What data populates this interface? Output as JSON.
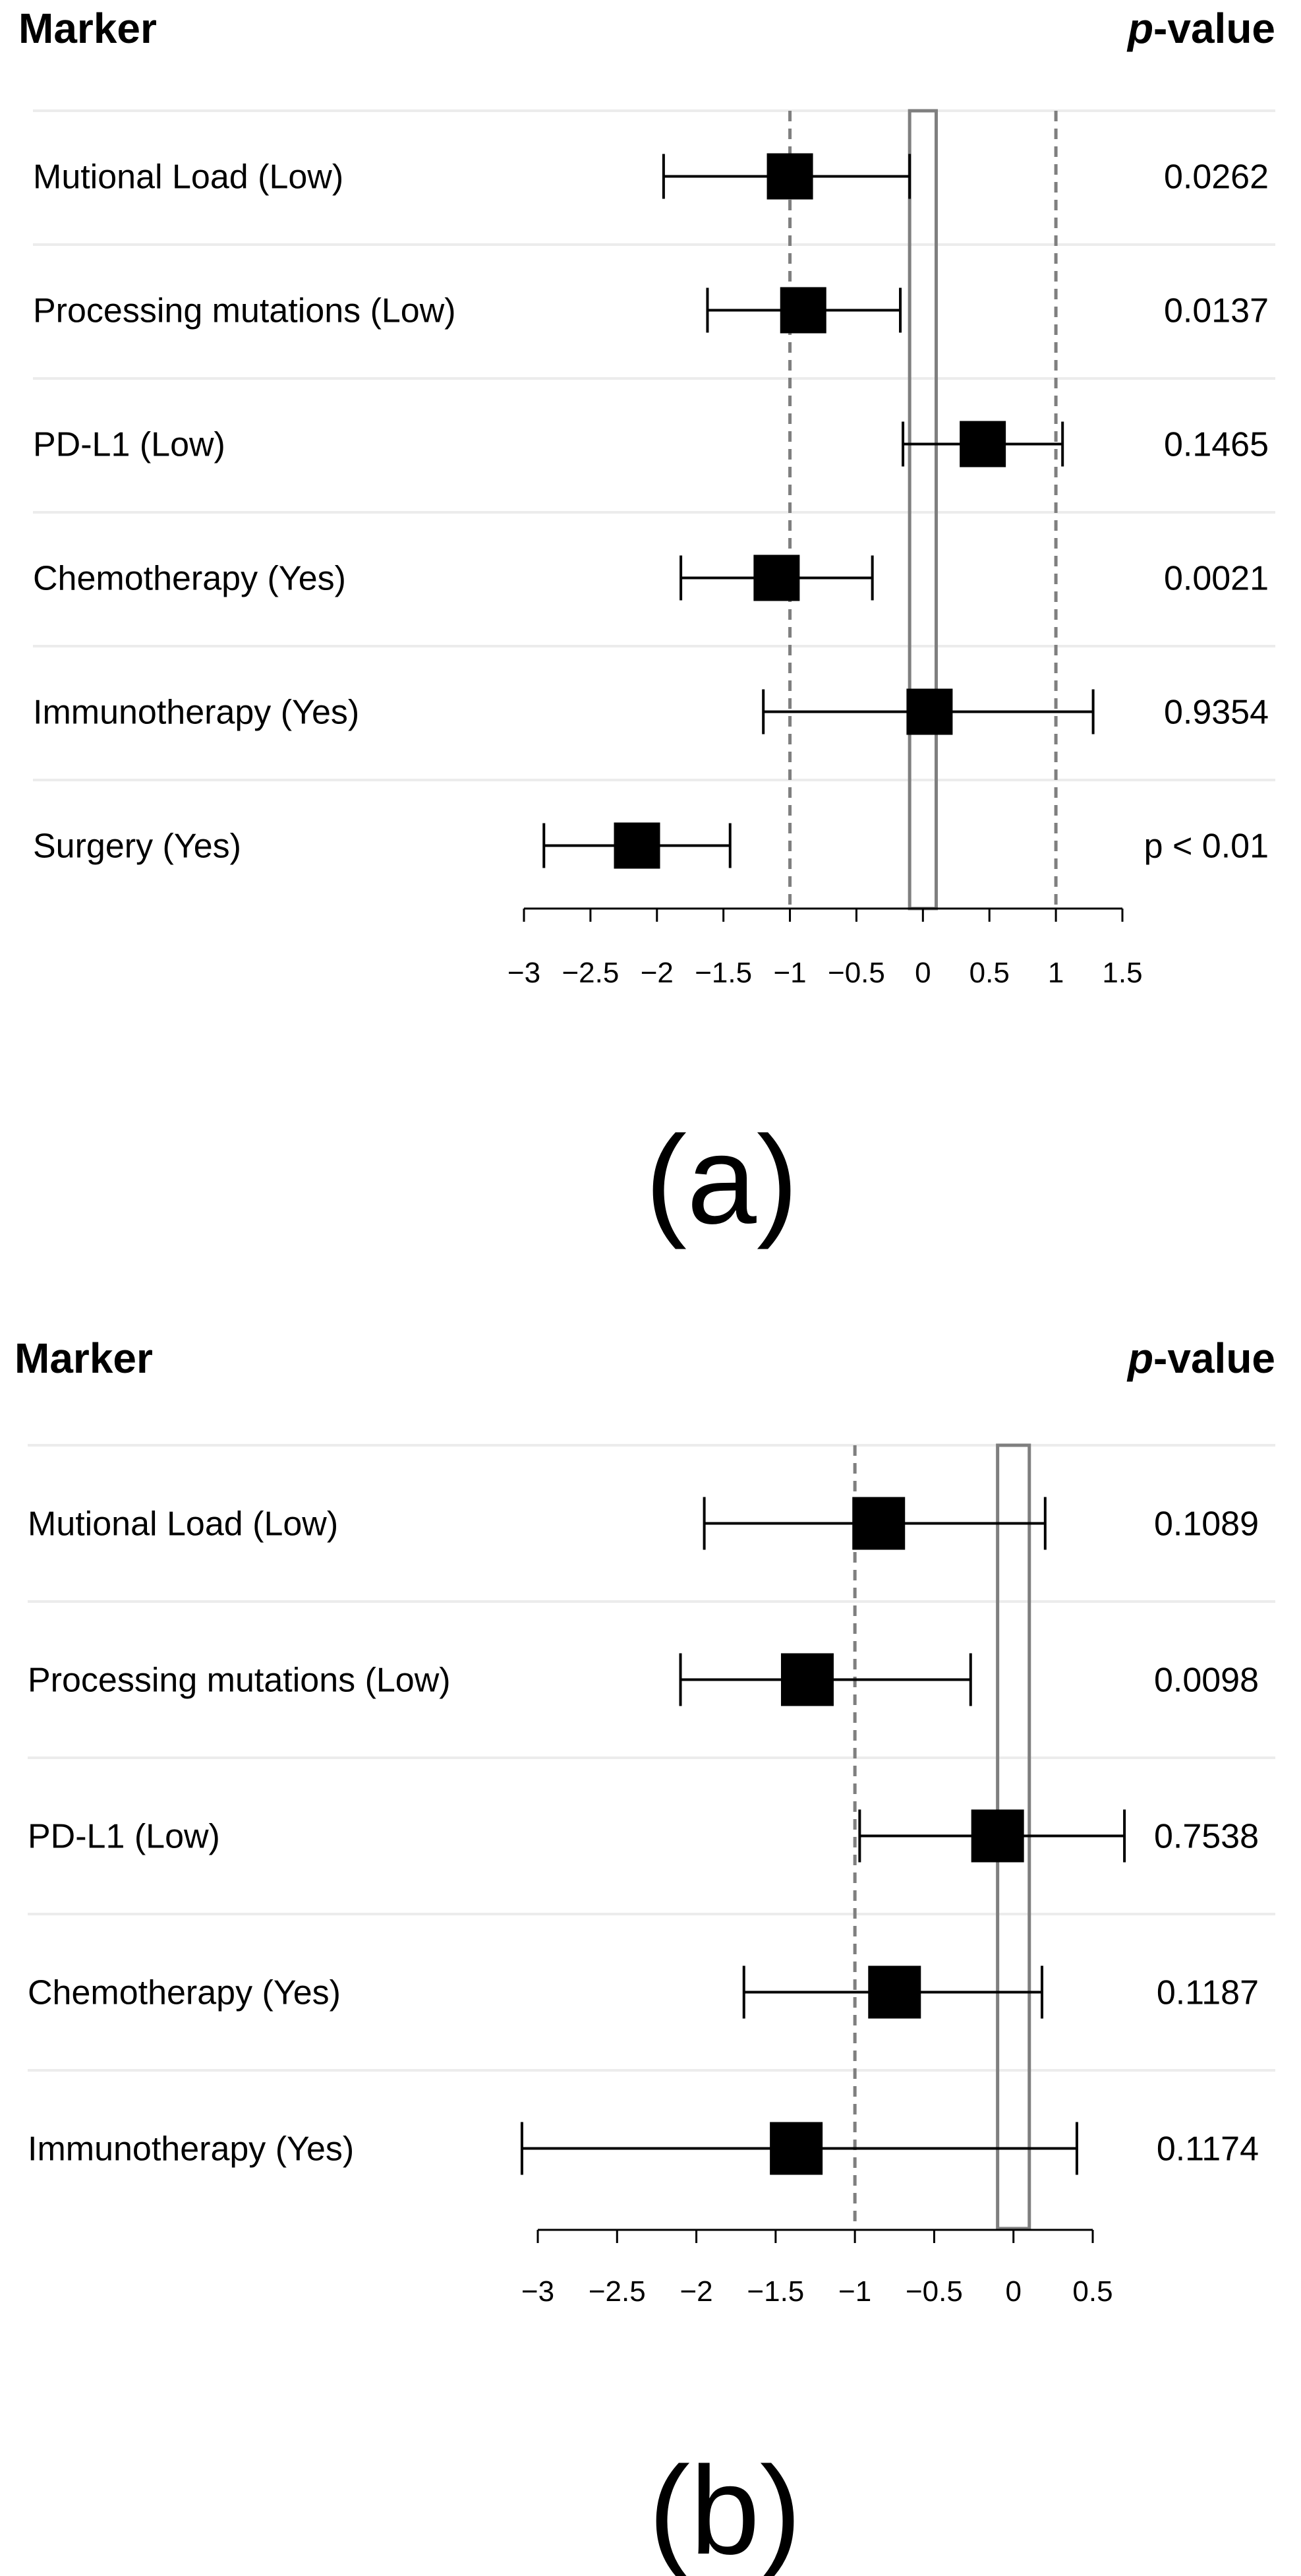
{
  "chart_data": [
    {
      "type": "forest",
      "panel_label": "(a)",
      "header_left": "Marker",
      "header_right_italic": "p",
      "header_right_rest": "-value",
      "xlim": [
        -3,
        1.5
      ],
      "ticks": [
        -3,
        -2.5,
        -2,
        -1.5,
        -1,
        -0.5,
        0,
        0.5,
        1,
        1.5
      ],
      "tick_labels": [
        "−3",
        "−2.5",
        "−2",
        "−1.5",
        "−1",
        "−0.5",
        "0",
        "0.5",
        "1",
        "1.5"
      ],
      "reference_lines": [
        -1,
        1
      ],
      "null_band": [
        -0.1,
        0.1
      ],
      "rows": [
        {
          "label": "Mutional Load (Low)",
          "estimate": -1.0,
          "lower": -1.95,
          "upper": -0.1,
          "p_value": "0.0262"
        },
        {
          "label": "Processing mutations (Low)",
          "estimate": -0.9,
          "lower": -1.62,
          "upper": -0.17,
          "p_value": "0.0137"
        },
        {
          "label": "PD-L1 (Low)",
          "estimate": 0.45,
          "lower": -0.15,
          "upper": 1.05,
          "p_value": "0.1465"
        },
        {
          "label": "Chemotherapy (Yes)",
          "estimate": -1.1,
          "lower": -1.82,
          "upper": -0.38,
          "p_value": "0.0021"
        },
        {
          "label": "Immunotherapy (Yes)",
          "estimate": 0.05,
          "lower": -1.2,
          "upper": 1.28,
          "p_value": "0.9354"
        },
        {
          "label": "Surgery (Yes)",
          "estimate": -2.15,
          "lower": -2.85,
          "upper": -1.45,
          "p_value": "p < 0.01"
        }
      ]
    },
    {
      "type": "forest",
      "panel_label": "(b)",
      "header_left": "Marker",
      "header_right_italic": "p",
      "header_right_rest": "-value",
      "xlim": [
        -3,
        0.5
      ],
      "ticks": [
        -3,
        -2.5,
        -2,
        -1.5,
        -1,
        -0.5,
        0,
        0.5
      ],
      "tick_labels": [
        "−3",
        "−2.5",
        "−2",
        "−1.5",
        "−1",
        "−0.5",
        "0",
        "0.5"
      ],
      "reference_lines": [
        -1
      ],
      "null_band": [
        -0.1,
        0.1
      ],
      "rows": [
        {
          "label": "Mutional Load (Low)",
          "estimate": -0.85,
          "lower": -1.95,
          "upper": 0.2,
          "p_value": "0.1089"
        },
        {
          "label": "Processing mutations (Low)",
          "estimate": -1.3,
          "lower": -2.1,
          "upper": -0.27,
          "p_value": "0.0098"
        },
        {
          "label": "PD-L1 (Low)",
          "estimate": -0.1,
          "lower": -0.97,
          "upper": 0.7,
          "p_value": "0.7538"
        },
        {
          "label": "Chemotherapy (Yes)",
          "estimate": -0.75,
          "lower": -1.7,
          "upper": 0.18,
          "p_value": "0.1187"
        },
        {
          "label": "Immunotherapy (Yes)",
          "estimate": -1.37,
          "lower": -3.1,
          "upper": 0.4,
          "p_value": "0.1174"
        }
      ]
    }
  ]
}
